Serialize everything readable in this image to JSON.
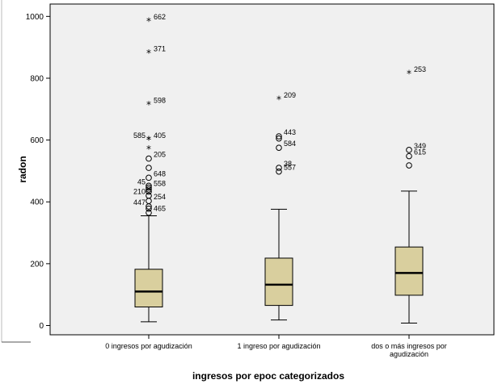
{
  "chart_data": {
    "type": "boxplot",
    "title": "",
    "xlabel": "ingresos por epoc categorizados",
    "ylabel": "radon",
    "ylim": [
      -30,
      1040
    ],
    "yticks": [
      0,
      200,
      400,
      600,
      800,
      1000
    ],
    "grid": false,
    "legend": "none",
    "colors": {
      "plot_bg": "#f0f0f0",
      "box_fill": "#d9cf9e",
      "line": "#000000"
    },
    "categories": [
      {
        "label_lines": [
          "0 ingresos por agudización"
        ]
      },
      {
        "label_lines": [
          "1 ingreso por agudización"
        ]
      },
      {
        "label_lines": [
          "dos o más ingresos por",
          "agudización"
        ]
      }
    ],
    "boxes": [
      {
        "whisker_low": 12,
        "q1": 60,
        "median": 110,
        "q3": 182,
        "whisker_high": 355,
        "outliers": [
          {
            "value": 985,
            "id": "662",
            "marker": "star"
          },
          {
            "value": 882,
            "id": "371",
            "marker": "star"
          },
          {
            "value": 715,
            "id": "598",
            "marker": "star"
          },
          {
            "value": 602,
            "id": "405",
            "marker": "star"
          },
          {
            "value": 602,
            "id": "585",
            "marker": "star"
          },
          {
            "value": 572,
            "id": "",
            "marker": "star"
          },
          {
            "value": 540,
            "id": "205",
            "marker": "circle"
          },
          {
            "value": 510,
            "id": "",
            "marker": "circle"
          },
          {
            "value": 478,
            "id": "648",
            "marker": "circle"
          },
          {
            "value": 452,
            "id": "45",
            "marker": "circle"
          },
          {
            "value": 446,
            "id": "558",
            "marker": "circle"
          },
          {
            "value": 440,
            "id": "",
            "marker": "circle"
          },
          {
            "value": 433,
            "id": "",
            "marker": "circle"
          },
          {
            "value": 420,
            "id": "210",
            "marker": "circle"
          },
          {
            "value": 403,
            "id": "254",
            "marker": "circle"
          },
          {
            "value": 385,
            "id": "447",
            "marker": "circle"
          },
          {
            "value": 378,
            "id": "",
            "marker": "circle"
          },
          {
            "value": 365,
            "id": "465",
            "marker": "circle"
          }
        ]
      },
      {
        "whisker_low": 18,
        "q1": 65,
        "median": 132,
        "q3": 218,
        "whisker_high": 376,
        "outliers": [
          {
            "value": 732,
            "id": "209",
            "marker": "star"
          },
          {
            "value": 612,
            "id": "443",
            "marker": "circle"
          },
          {
            "value": 605,
            "id": "",
            "marker": "circle"
          },
          {
            "value": 575,
            "id": "584",
            "marker": "circle"
          },
          {
            "value": 510,
            "id": "38",
            "marker": "circle"
          },
          {
            "value": 498,
            "id": "557",
            "marker": "circle"
          }
        ]
      },
      {
        "whisker_low": 8,
        "q1": 98,
        "median": 170,
        "q3": 254,
        "whisker_high": 435,
        "outliers": [
          {
            "value": 815,
            "id": "253",
            "marker": "star"
          },
          {
            "value": 568,
            "id": "349",
            "marker": "circle"
          },
          {
            "value": 548,
            "id": "615",
            "marker": "circle"
          },
          {
            "value": 518,
            "id": "",
            "marker": "circle"
          }
        ]
      }
    ]
  }
}
